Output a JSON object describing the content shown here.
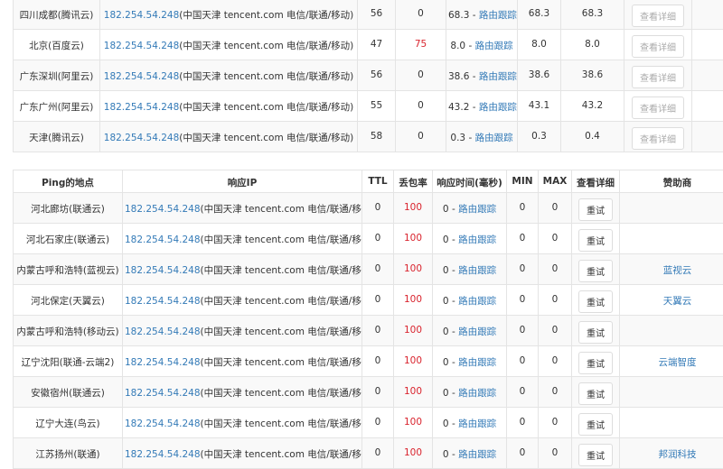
{
  "top_table": {
    "detail_label": "查看详细",
    "trace_label": "路由跟踪",
    "rows": [
      {
        "location": "四川成都(腾讯云)",
        "ip": "182.254.54.248",
        "ip_info": "(中国天津 tencent.com 电信/联通/移动)",
        "ttl": "56",
        "loss": "0",
        "time": "68.3",
        "min": "68.3",
        "max": "68.3"
      },
      {
        "location": "北京(百度云)",
        "ip": "182.254.54.248",
        "ip_info": "(中国天津 tencent.com 电信/联通/移动)",
        "ttl": "47",
        "loss": "75",
        "time": "8.0",
        "min": "8.0",
        "max": "8.0"
      },
      {
        "location": "广东深圳(阿里云)",
        "ip": "182.254.54.248",
        "ip_info": "(中国天津 tencent.com 电信/联通/移动)",
        "ttl": "56",
        "loss": "0",
        "time": "38.6",
        "min": "38.6",
        "max": "38.6"
      },
      {
        "location": "广东广州(阿里云)",
        "ip": "182.254.54.248",
        "ip_info": "(中国天津 tencent.com 电信/联通/移动)",
        "ttl": "55",
        "loss": "0",
        "time": "43.2",
        "min": "43.1",
        "max": "43.2"
      },
      {
        "location": "天津(腾讯云)",
        "ip": "182.254.54.248",
        "ip_info": "(中国天津 tencent.com 电信/联通/移动)",
        "ttl": "58",
        "loss": "0",
        "time": "0.3",
        "min": "0.3",
        "max": "0.4"
      }
    ]
  },
  "bottom_table": {
    "headers": {
      "location": "Ping的地点",
      "ip": "响应IP",
      "ttl": "TTL",
      "loss": "丢包率",
      "time": "响应时间(毫秒)",
      "min": "MIN",
      "max": "MAX",
      "detail": "查看详细",
      "sponsor": "赞助商"
    },
    "retry_label": "重试",
    "trace_label": "路由跟踪",
    "rows": [
      {
        "location": "河北廊坊(联通云)",
        "ip": "182.254.54.248",
        "ip_info": "(中国天津 tencent.com 电信/联通/移动)",
        "ttl": "0",
        "loss": "100",
        "time": "0",
        "min": "0",
        "max": "0",
        "sponsor": ""
      },
      {
        "location": "河北石家庄(联通云)",
        "ip": "182.254.54.248",
        "ip_info": "(中国天津 tencent.com 电信/联通/移动)",
        "ttl": "0",
        "loss": "100",
        "time": "0",
        "min": "0",
        "max": "0",
        "sponsor": ""
      },
      {
        "location": "内蒙古呼和浩特(蓝视云)",
        "ip": "182.254.54.248",
        "ip_info": "(中国天津 tencent.com 电信/联通/移动)",
        "ttl": "0",
        "loss": "100",
        "time": "0",
        "min": "0",
        "max": "0",
        "sponsor": "蓝视云"
      },
      {
        "location": "河北保定(天翼云)",
        "ip": "182.254.54.248",
        "ip_info": "(中国天津 tencent.com 电信/联通/移动)",
        "ttl": "0",
        "loss": "100",
        "time": "0",
        "min": "0",
        "max": "0",
        "sponsor": "天翼云"
      },
      {
        "location": "内蒙古呼和浩特(移动云)",
        "ip": "182.254.54.248",
        "ip_info": "(中国天津 tencent.com 电信/联通/移动)",
        "ttl": "0",
        "loss": "100",
        "time": "0",
        "min": "0",
        "max": "0",
        "sponsor": ""
      },
      {
        "location": "辽宁沈阳(联通-云端2)",
        "ip": "182.254.54.248",
        "ip_info": "(中国天津 tencent.com 电信/联通/移动)",
        "ttl": "0",
        "loss": "100",
        "time": "0",
        "min": "0",
        "max": "0",
        "sponsor": "云端智度"
      },
      {
        "location": "安徽宿州(联通云)",
        "ip": "182.254.54.248",
        "ip_info": "(中国天津 tencent.com 电信/联通/移动)",
        "ttl": "0",
        "loss": "100",
        "time": "0",
        "min": "0",
        "max": "0",
        "sponsor": ""
      },
      {
        "location": "辽宁大连(鸟云)",
        "ip": "182.254.54.248",
        "ip_info": "(中国天津 tencent.com 电信/联通/移动)",
        "ttl": "0",
        "loss": "100",
        "time": "0",
        "min": "0",
        "max": "0",
        "sponsor": ""
      },
      {
        "location": "江苏扬州(联通)",
        "ip": "182.254.54.248",
        "ip_info": "(中国天津 tencent.com 电信/联通/移动)",
        "ttl": "0",
        "loss": "100",
        "time": "0",
        "min": "0",
        "max": "0",
        "sponsor": "邦润科技"
      }
    ]
  },
  "colors": {
    "link": "#337ab7",
    "loss_red": "#d9232d"
  }
}
